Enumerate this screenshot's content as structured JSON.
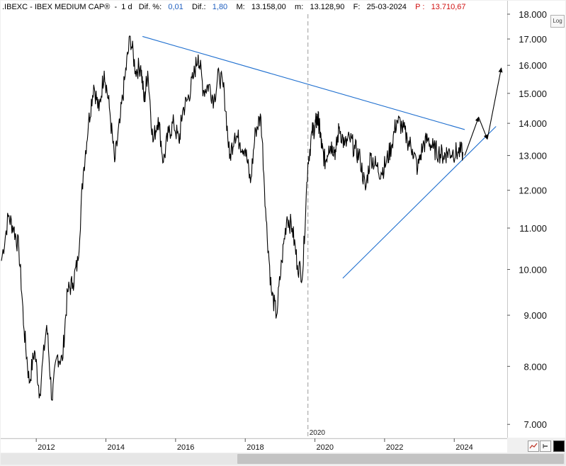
{
  "infobar": {
    "symbol": ".IBEXC - IBEX MEDIUM CAP®",
    "period": "1 d",
    "dif_pct_label": "Dif. %:",
    "dif_pct_value": "0,01",
    "dif_label": "Dif.:",
    "dif_value": "1,80",
    "max_label": "M:",
    "max_value": "13.158,00",
    "min_label": "m:",
    "min_value": "13.128,90",
    "date_label": "F:",
    "date_value": "25-03-2024",
    "price_label": "P :",
    "price_value": "13.710,67"
  },
  "buttons": {
    "log_label": "Log"
  },
  "colors": {
    "price_line": "#000000",
    "trendline": "#1f6fcf",
    "grid": "#d0d0d0"
  },
  "chart_data": {
    "type": "line",
    "yscale": "log",
    "ylim": [
      6800,
      18000
    ],
    "y_ticks": [
      7000,
      8000,
      9000,
      10000,
      11000,
      12000,
      13000,
      14000,
      15000,
      16000,
      17000,
      18000
    ],
    "y_tick_labels": [
      "7.000",
      "8.000",
      "9.000",
      "10.000",
      "11.000",
      "12.000",
      "13.000",
      "14.000",
      "15.000",
      "16.000",
      "17.000",
      "18.000"
    ],
    "xlim": [
      2011.0,
      2025.5
    ],
    "x_ticks": [
      2012,
      2014,
      2016,
      2018,
      2020,
      2022,
      2024
    ],
    "x_tick_labels": [
      "2012",
      "2014",
      "2016",
      "2018",
      "2020",
      "2022",
      "2024"
    ],
    "cursor": {
      "x": 2019.8,
      "label": "2020"
    },
    "series": [
      {
        "x": [
          2011.0,
          2011.2,
          2011.35,
          2011.5,
          2011.65,
          2011.8,
          2011.95,
          2012.1,
          2012.3,
          2012.45,
          2012.6,
          2012.75,
          2012.9,
          2013.05,
          2013.2,
          2013.35,
          2013.5,
          2013.65,
          2013.8,
          2013.95,
          2014.1,
          2014.25,
          2014.4,
          2014.55,
          2014.7,
          2014.85,
          2015.0,
          2015.1,
          2015.2,
          2015.35,
          2015.5,
          2015.65,
          2015.8,
          2015.95,
          2016.1,
          2016.2,
          2016.35,
          2016.5,
          2016.65,
          2016.8,
          2016.95,
          2017.1,
          2017.25,
          2017.4,
          2017.55,
          2017.7,
          2017.85,
          2018.0,
          2018.15,
          2018.3,
          2018.45,
          2018.6,
          2018.75,
          2018.9,
          2019.05,
          2019.2,
          2019.35,
          2019.5,
          2019.65,
          2019.8,
          2019.92,
          2020.0,
          2020.05,
          2020.1,
          2020.15,
          2020.2,
          2020.3,
          2020.4,
          2020.5,
          2020.6,
          2020.7,
          2020.85,
          2021.0,
          2021.15,
          2021.3,
          2021.45,
          2021.6,
          2021.75,
          2021.9,
          2022.05,
          2022.2,
          2022.35,
          2022.5,
          2022.65,
          2022.8,
          2022.95,
          2023.1,
          2023.25,
          2023.4,
          2023.55,
          2023.7,
          2023.8,
          2023.95,
          2024.1,
          2024.25
        ],
        "values": [
          10200,
          11300,
          11000,
          10500,
          8700,
          7700,
          8300,
          7500,
          8800,
          7400,
          8200,
          8100,
          9500,
          9700,
          10200,
          12500,
          14000,
          15300,
          14400,
          15800,
          14500,
          12800,
          14000,
          15600,
          17100,
          15800,
          16000,
          14700,
          15800,
          13400,
          14200,
          12800,
          13700,
          14000,
          13400,
          14400,
          14800,
          15500,
          16400,
          15100,
          15300,
          14800,
          15700,
          15000,
          12900,
          13700,
          13400,
          13200,
          12200,
          13800,
          14200,
          11200,
          9500,
          9000,
          10200,
          11300,
          11000,
          10100,
          9900,
          12800,
          13700,
          13900,
          14100,
          14100,
          13700,
          13200,
          12800,
          13300,
          13300,
          13100,
          13900,
          13300,
          13500,
          13200,
          12900,
          12000,
          13000,
          12700,
          12500,
          12800,
          13300,
          14100,
          13900,
          13500,
          13200,
          12600,
          13300,
          13500,
          13200,
          13100,
          13000,
          13100,
          13100,
          13100,
          13100
        ],
        "name": ""
      }
    ],
    "trendlines": [
      {
        "from": [
          2015.05,
          17100
        ],
        "to": [
          2024.3,
          13800
        ]
      },
      {
        "from": [
          2020.8,
          9800
        ],
        "to": [
          2025.2,
          13900
        ]
      }
    ],
    "projection": {
      "x": [
        2024.3,
        2024.7,
        2024.95,
        2025.35
      ],
      "values": [
        13000,
        14200,
        13500,
        15900
      ]
    }
  }
}
